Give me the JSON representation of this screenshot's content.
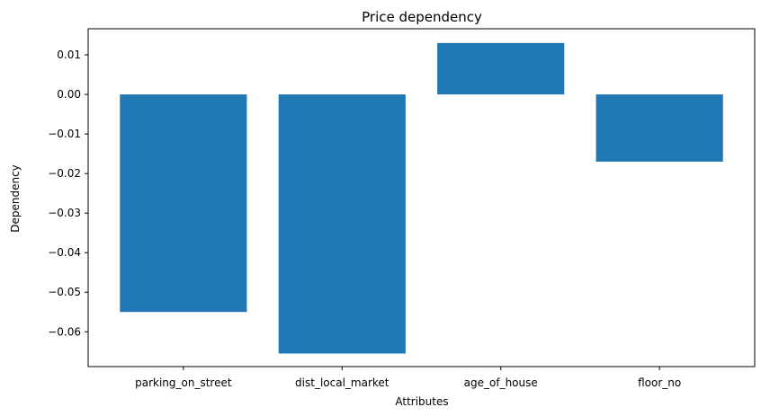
{
  "chart_data": {
    "type": "bar",
    "title": "Price dependency",
    "xlabel": "Attributes",
    "ylabel": "Dependency",
    "categories": [
      "parking_on_street",
      "dist_local_market",
      "age_of_house",
      "floor_no"
    ],
    "values": [
      -0.055,
      -0.0655,
      0.013,
      -0.017
    ],
    "ylim": [
      -0.0688,
      0.0166
    ],
    "yticks": [
      0.01,
      0.0,
      -0.01,
      -0.02,
      -0.03,
      -0.04,
      -0.05,
      -0.06
    ],
    "ytick_labels": [
      "0.01",
      "0.00",
      "−0.01",
      "−0.02",
      "−0.03",
      "−0.04",
      "−0.05",
      "−0.06"
    ],
    "bar_color": "#1f77b4",
    "grid": false,
    "legend": "none"
  }
}
